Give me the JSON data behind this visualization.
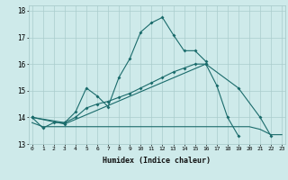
{
  "title": "",
  "xlabel": "Humidex (Indice chaleur)",
  "bg_color": "#ceeaea",
  "grid_color": "#aacccc",
  "line_color": "#1a6b6b",
  "series1": {
    "x": [
      0,
      1,
      2,
      3,
      4,
      5,
      6,
      7,
      8,
      9,
      10,
      11,
      12,
      13,
      14,
      15,
      16
    ],
    "y": [
      14.0,
      13.6,
      13.8,
      13.8,
      14.2,
      15.1,
      14.8,
      14.4,
      15.5,
      16.2,
      17.2,
      17.55,
      17.75,
      17.1,
      16.5,
      16.5,
      16.1
    ]
  },
  "series2": {
    "x": [
      0,
      3,
      4,
      5,
      6,
      7,
      8,
      9,
      10,
      11,
      12,
      13,
      14,
      15,
      16,
      17,
      18,
      19,
      20,
      21,
      22,
      23
    ],
    "y": [
      14.0,
      13.8,
      14.0,
      14.35,
      14.5,
      14.6,
      14.75,
      14.9,
      15.1,
      15.3,
      15.5,
      15.7,
      15.85,
      16.0,
      16.0,
      15.2,
      14.0,
      13.3,
      null,
      null,
      null,
      null
    ]
  },
  "series3": {
    "x": [
      0,
      3,
      16,
      19,
      21,
      22,
      23
    ],
    "y": [
      14.0,
      13.75,
      16.0,
      15.1,
      14.0,
      13.3,
      null
    ]
  },
  "series4": {
    "x": [
      0,
      1,
      2,
      3,
      4,
      5,
      6,
      7,
      8,
      9,
      10,
      11,
      12,
      13,
      14,
      15,
      16,
      17,
      18,
      19,
      20,
      21,
      22,
      23
    ],
    "y": [
      13.8,
      13.65,
      13.65,
      13.65,
      13.65,
      13.65,
      13.65,
      13.65,
      13.65,
      13.65,
      13.65,
      13.65,
      13.65,
      13.65,
      13.65,
      13.65,
      13.65,
      13.65,
      13.65,
      13.65,
      13.65,
      13.55,
      13.35,
      13.35
    ]
  },
  "ylim": [
    13.0,
    18.2
  ],
  "xlim": [
    -0.3,
    23.3
  ],
  "yticks": [
    13,
    14,
    15,
    16,
    17,
    18
  ]
}
